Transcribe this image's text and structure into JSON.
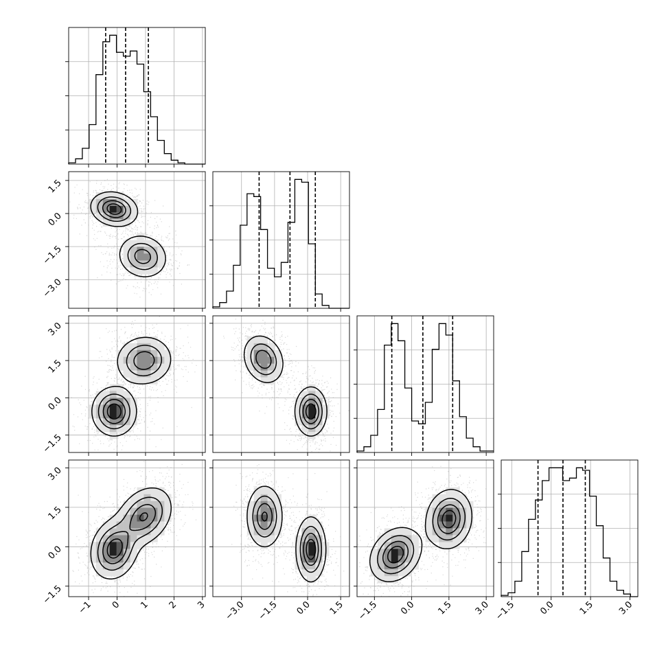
{
  "chart_data": {
    "type": "corner",
    "parameters": 4,
    "grid": true,
    "colors": {
      "scatter": "#9a9a9a",
      "levels": [
        "#ffffff",
        "#e4e4e4",
        "#c2c2c2",
        "#8e8e8e",
        "#5a5a5a",
        "#202020"
      ]
    },
    "ranges": [
      [
        -1.7,
        3.1
      ],
      [
        -4.3,
        1.9
      ],
      [
        -2.2,
        3.3
      ],
      [
        -1.9,
        3.3
      ]
    ],
    "ticks": [
      [
        -1,
        0,
        1,
        2,
        3
      ],
      [
        -3.0,
        -1.5,
        0.0,
        1.5
      ],
      [
        -1.5,
        0.0,
        1.5,
        3.0
      ],
      [
        -1.5,
        0.0,
        1.5,
        3.0
      ]
    ],
    "tick_labels": [
      [
        "−1",
        "0",
        "1",
        "2",
        "3"
      ],
      [
        "−3.0",
        "−1.5",
        "0.0",
        "1.5"
      ],
      [
        "−1.5",
        "0.0",
        "1.5",
        "3.0"
      ],
      [
        "−1.5",
        "0.0",
        "1.5",
        "3.0"
      ]
    ],
    "quantiles": [
      [
        -0.4,
        0.3,
        1.1
      ],
      [
        -2.2,
        -0.8,
        0.35
      ],
      [
        -0.8,
        0.45,
        1.65
      ],
      [
        -0.5,
        0.45,
        1.3
      ]
    ],
    "histograms": [
      {
        "bins": [
          -1.7,
          -1.46,
          -1.22,
          -0.98,
          -0.74,
          -0.5,
          -0.26,
          -0.02,
          0.22,
          0.46,
          0.7,
          0.94,
          1.18,
          1.42,
          1.66,
          1.9,
          2.14,
          2.38,
          2.62,
          2.86,
          3.1
        ],
        "counts": [
          1,
          4,
          12,
          30,
          68,
          93,
          98,
          85,
          82,
          86,
          76,
          55,
          36,
          18,
          8,
          3,
          1,
          0,
          0,
          0
        ]
      },
      {
        "bins": [
          -4.3,
          -3.99,
          -3.68,
          -3.37,
          -3.06,
          -2.75,
          -2.44,
          -2.13,
          -1.82,
          -1.51,
          -1.2,
          -0.89,
          -0.58,
          -0.27,
          0.04,
          0.35,
          0.66,
          0.97,
          1.28,
          1.59,
          1.9
        ],
        "counts": [
          1,
          4,
          12,
          30,
          58,
          80,
          78,
          55,
          28,
          22,
          32,
          60,
          90,
          88,
          45,
          10,
          2,
          0,
          0,
          0
        ]
      },
      {
        "bins": [
          -2.2,
          -1.925,
          -1.65,
          -1.375,
          -1.1,
          -0.825,
          -0.55,
          -0.275,
          0.0,
          0.275,
          0.55,
          0.825,
          1.1,
          1.375,
          1.65,
          1.925,
          2.2,
          2.475,
          2.75,
          3.025,
          3.3
        ],
        "counts": [
          1,
          4,
          12,
          30,
          75,
          90,
          78,
          45,
          22,
          20,
          35,
          72,
          90,
          82,
          50,
          25,
          10,
          4,
          1,
          1
        ]
      },
      {
        "bins": [
          -1.9,
          -1.64,
          -1.38,
          -1.12,
          -0.86,
          -0.6,
          -0.34,
          -0.08,
          0.18,
          0.44,
          0.7,
          0.96,
          1.2,
          1.46,
          1.72,
          1.98,
          2.24,
          2.5,
          2.76,
          3.02,
          3.3
        ],
        "counts": [
          1,
          3,
          12,
          35,
          60,
          75,
          90,
          100,
          100,
          90,
          92,
          100,
          98,
          78,
          55,
          30,
          12,
          5,
          2,
          0
        ]
      }
    ],
    "pairs": [
      {
        "row": 1,
        "col": 0,
        "blobs": [
          {
            "mx": -0.1,
            "my": 0.2,
            "sx": 0.4,
            "sy": 0.38,
            "rho": -0.15,
            "w": 0.5
          },
          {
            "mx": 0.9,
            "my": -1.95,
            "sx": 0.42,
            "sy": 0.48,
            "rho": -0.1,
            "w": 0.5
          }
        ]
      },
      {
        "row": 2,
        "col": 0,
        "blobs": [
          {
            "mx": -0.1,
            "my": -0.55,
            "sx": 0.38,
            "sy": 0.48,
            "rho": 0.0,
            "w": 0.5
          },
          {
            "mx": 0.95,
            "my": 1.5,
            "sx": 0.48,
            "sy": 0.48,
            "rho": 0.05,
            "w": 0.5
          }
        ]
      },
      {
        "row": 2,
        "col": 1,
        "blobs": [
          {
            "mx": -2.0,
            "my": 1.55,
            "sx": 0.45,
            "sy": 0.48,
            "rho": -0.2,
            "w": 0.5
          },
          {
            "mx": 0.15,
            "my": -0.55,
            "sx": 0.35,
            "sy": 0.48,
            "rho": 0.0,
            "w": 0.5
          }
        ]
      },
      {
        "row": 3,
        "col": 0,
        "blobs": [
          {
            "mx": -0.1,
            "my": -0.1,
            "sx": 0.4,
            "sy": 0.55,
            "rho": 0.15,
            "w": 0.5
          },
          {
            "mx": 0.95,
            "my": 1.15,
            "sx": 0.48,
            "sy": 0.55,
            "rho": 0.3,
            "w": 0.5
          }
        ]
      },
      {
        "row": 3,
        "col": 1,
        "blobs": [
          {
            "mx": -1.95,
            "my": 1.15,
            "sx": 0.4,
            "sy": 0.58,
            "rho": 0.0,
            "w": 0.5
          },
          {
            "mx": 0.15,
            "my": -0.1,
            "sx": 0.33,
            "sy": 0.6,
            "rho": 0.0,
            "w": 0.5
          }
        ]
      },
      {
        "row": 3,
        "col": 2,
        "blobs": [
          {
            "mx": -0.65,
            "my": -0.3,
            "sx": 0.5,
            "sy": 0.5,
            "rho": 0.25,
            "w": 0.5
          },
          {
            "mx": 1.5,
            "my": 1.05,
            "sx": 0.45,
            "sy": 0.55,
            "rho": 0.1,
            "w": 0.5
          }
        ]
      }
    ]
  }
}
